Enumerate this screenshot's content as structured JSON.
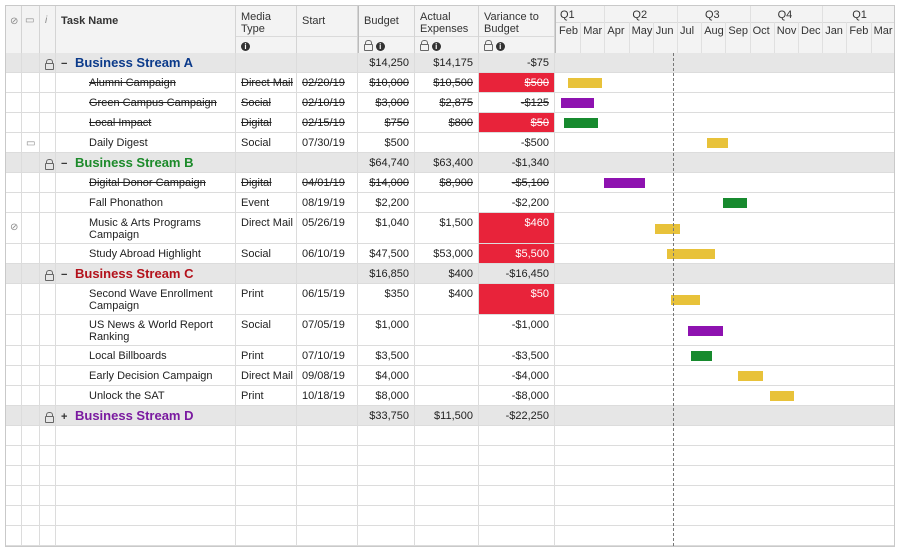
{
  "header": {
    "attach_icon": "paperclip-icon",
    "comment_icon": "comment-icon",
    "info_icon": "info-icon",
    "task_name": "Task Name",
    "media_type": "Media Type",
    "start": "Start",
    "budget": "Budget",
    "actual": "Actual Expenses",
    "variance": "Variance to Budget"
  },
  "timeline": {
    "quarters": [
      "Q1",
      "Q2",
      "Q3",
      "Q4",
      "Q1"
    ],
    "months": [
      "Feb",
      "Mar",
      "Apr",
      "May",
      "Jun",
      "Jul",
      "Aug",
      "Sep",
      "Oct",
      "Nov",
      "Dec",
      "Jan",
      "Feb",
      "Mar"
    ]
  },
  "rows": [
    {
      "type": "group",
      "toggle": "−",
      "name": "Business Stream A",
      "color": "#0b3a8a",
      "budget": "$14,250",
      "actual": "$14,175",
      "variance": "-$75",
      "locked": true
    },
    {
      "type": "task",
      "name": "Alumni Campaign",
      "media": "Direct Mail",
      "start": "02/20/19",
      "budget": "$10,000",
      "actual": "$10,500",
      "variance": "$500",
      "strike": true,
      "red": true,
      "bar": {
        "start_month": 0.2,
        "span": 1.4,
        "color": "#e8c23a"
      }
    },
    {
      "type": "task",
      "name": "Green Campus Campaign",
      "media": "Social",
      "start": "02/10/19",
      "budget": "$3,000",
      "actual": "$2,875",
      "variance": "-$125",
      "strike": true,
      "red": false,
      "bar": {
        "start_month": -0.1,
        "span": 1.4,
        "color": "#8e12b0"
      }
    },
    {
      "type": "task",
      "name": "Local Impact",
      "media": "Digital",
      "start": "02/15/19",
      "budget": "$750",
      "actual": "$800",
      "variance": "$50",
      "strike": true,
      "red": true,
      "bar": {
        "start_month": 0.05,
        "span": 1.4,
        "color": "#178a2e"
      }
    },
    {
      "type": "task",
      "name": "Daily Digest",
      "media": "Social",
      "start": "07/30/19",
      "budget": "$500",
      "actual": "",
      "variance": "-$500",
      "strike": false,
      "red": false,
      "comment": true,
      "bar": {
        "start_month": 5.95,
        "span": 0.85,
        "color": "#e8c23a"
      }
    },
    {
      "type": "group",
      "toggle": "−",
      "name": "Business Stream B",
      "color": "#1c8a2a",
      "budget": "$64,740",
      "actual": "$63,400",
      "variance": "-$1,340",
      "locked": true
    },
    {
      "type": "task",
      "name": "Digital Donor Campaign",
      "media": "Digital",
      "start": "04/01/19",
      "budget": "$14,000",
      "actual": "$8,900",
      "variance": "-$5,100",
      "strike": true,
      "red": false,
      "bar": {
        "start_month": 1.7,
        "span": 1.7,
        "color": "#8e12b0"
      }
    },
    {
      "type": "task",
      "name": "Fall Phonathon",
      "media": "Event",
      "start": "08/19/19",
      "budget": "$2,200",
      "actual": "",
      "variance": "-$2,200",
      "strike": false,
      "red": false,
      "bar": {
        "start_month": 6.6,
        "span": 1.0,
        "color": "#178a2e"
      }
    },
    {
      "type": "task",
      "name": "Music & Arts Programs Campaign",
      "media": "Direct Mail",
      "start": "05/26/19",
      "budget": "$1,040",
      "actual": "$1,500",
      "variance": "$460",
      "strike": false,
      "red": true,
      "attach": true,
      "bar": {
        "start_month": 3.8,
        "span": 1.05,
        "color": "#e8c23a"
      }
    },
    {
      "type": "task",
      "name": "Study Abroad Highlight",
      "media": "Social",
      "start": "06/10/19",
      "budget": "$47,500",
      "actual": "$53,000",
      "variance": "$5,500",
      "strike": false,
      "red": true,
      "bar": {
        "start_month": 4.3,
        "span": 2.0,
        "color": "#e8c23a"
      }
    },
    {
      "type": "group",
      "toggle": "−",
      "name": "Business Stream C",
      "color": "#b3111b",
      "budget": "$16,850",
      "actual": "$400",
      "variance": "-$16,450",
      "locked": true
    },
    {
      "type": "task",
      "name": "Second Wave Enrollment Campaign",
      "media": "Print",
      "start": "06/15/19",
      "budget": "$350",
      "actual": "$400",
      "variance": "$50",
      "strike": false,
      "red": true,
      "bar": {
        "start_month": 4.45,
        "span": 1.2,
        "color": "#e8c23a"
      }
    },
    {
      "type": "task",
      "name": "US News & World Report Ranking",
      "media": "Social",
      "start": "07/05/19",
      "budget": "$1,000",
      "actual": "",
      "variance": "-$1,000",
      "strike": false,
      "red": false,
      "bar": {
        "start_month": 5.15,
        "span": 1.45,
        "color": "#8e12b0"
      }
    },
    {
      "type": "task",
      "name": "Local Billboards",
      "media": "Print",
      "start": "07/10/19",
      "budget": "$3,500",
      "actual": "",
      "variance": "-$3,500",
      "strike": false,
      "red": false,
      "bar": {
        "start_month": 5.3,
        "span": 0.85,
        "color": "#178a2e"
      }
    },
    {
      "type": "task",
      "name": "Early Decision Campaign",
      "media": "Direct Mail",
      "start": "09/08/19",
      "budget": "$4,000",
      "actual": "",
      "variance": "-$4,000",
      "strike": false,
      "red": false,
      "bar": {
        "start_month": 7.25,
        "span": 1.0,
        "color": "#e8c23a"
      }
    },
    {
      "type": "task",
      "name": "Unlock the SAT",
      "media": "Print",
      "start": "10/18/19",
      "budget": "$8,000",
      "actual": "",
      "variance": "-$8,000",
      "strike": false,
      "red": false,
      "bar": {
        "start_month": 8.55,
        "span": 1.0,
        "color": "#e8c23a"
      }
    },
    {
      "type": "group",
      "toggle": "+",
      "name": "Business Stream D",
      "color": "#7a1aa0",
      "budget": "$33,750",
      "actual": "$11,500",
      "variance": "-$22,250",
      "locked": true
    }
  ],
  "today_month": 4.55,
  "empty_rows": 6
}
